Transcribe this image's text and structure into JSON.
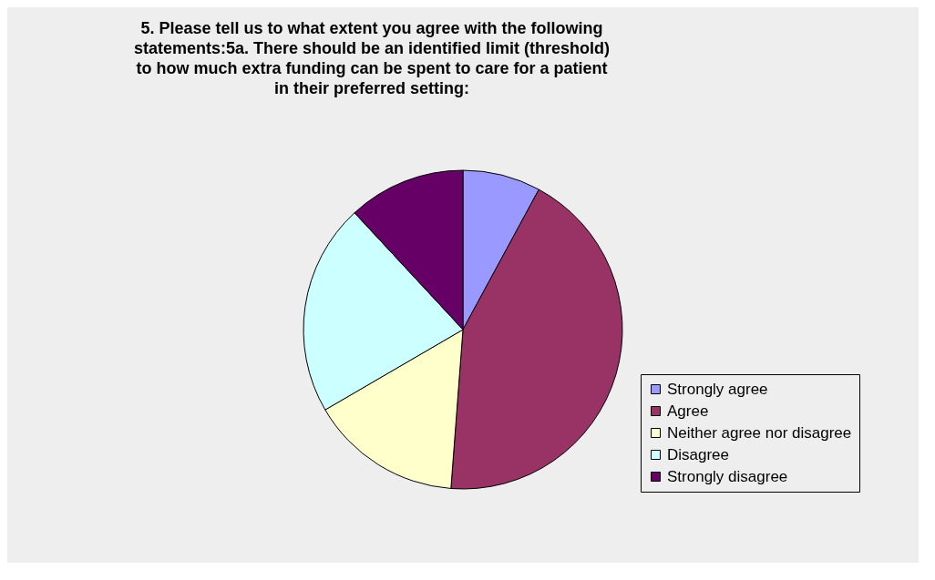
{
  "chart_data": {
    "type": "pie",
    "title": "5. Please tell us to what extent you agree with the following statements:5a. There should be an identified limit (threshold) to how much extra funding can be spent to care for a patient in their preferred setting:",
    "categories": [
      "Strongly agree",
      "Agree",
      "Neither agree nor disagree",
      "Disagree",
      "Strongly disagree"
    ],
    "values": [
      7.9,
      43.3,
      15.4,
      21.5,
      11.9
    ],
    "colors": [
      "#9999ff",
      "#993366",
      "#ffffcc",
      "#ccffff",
      "#660066"
    ],
    "legend": "right"
  }
}
